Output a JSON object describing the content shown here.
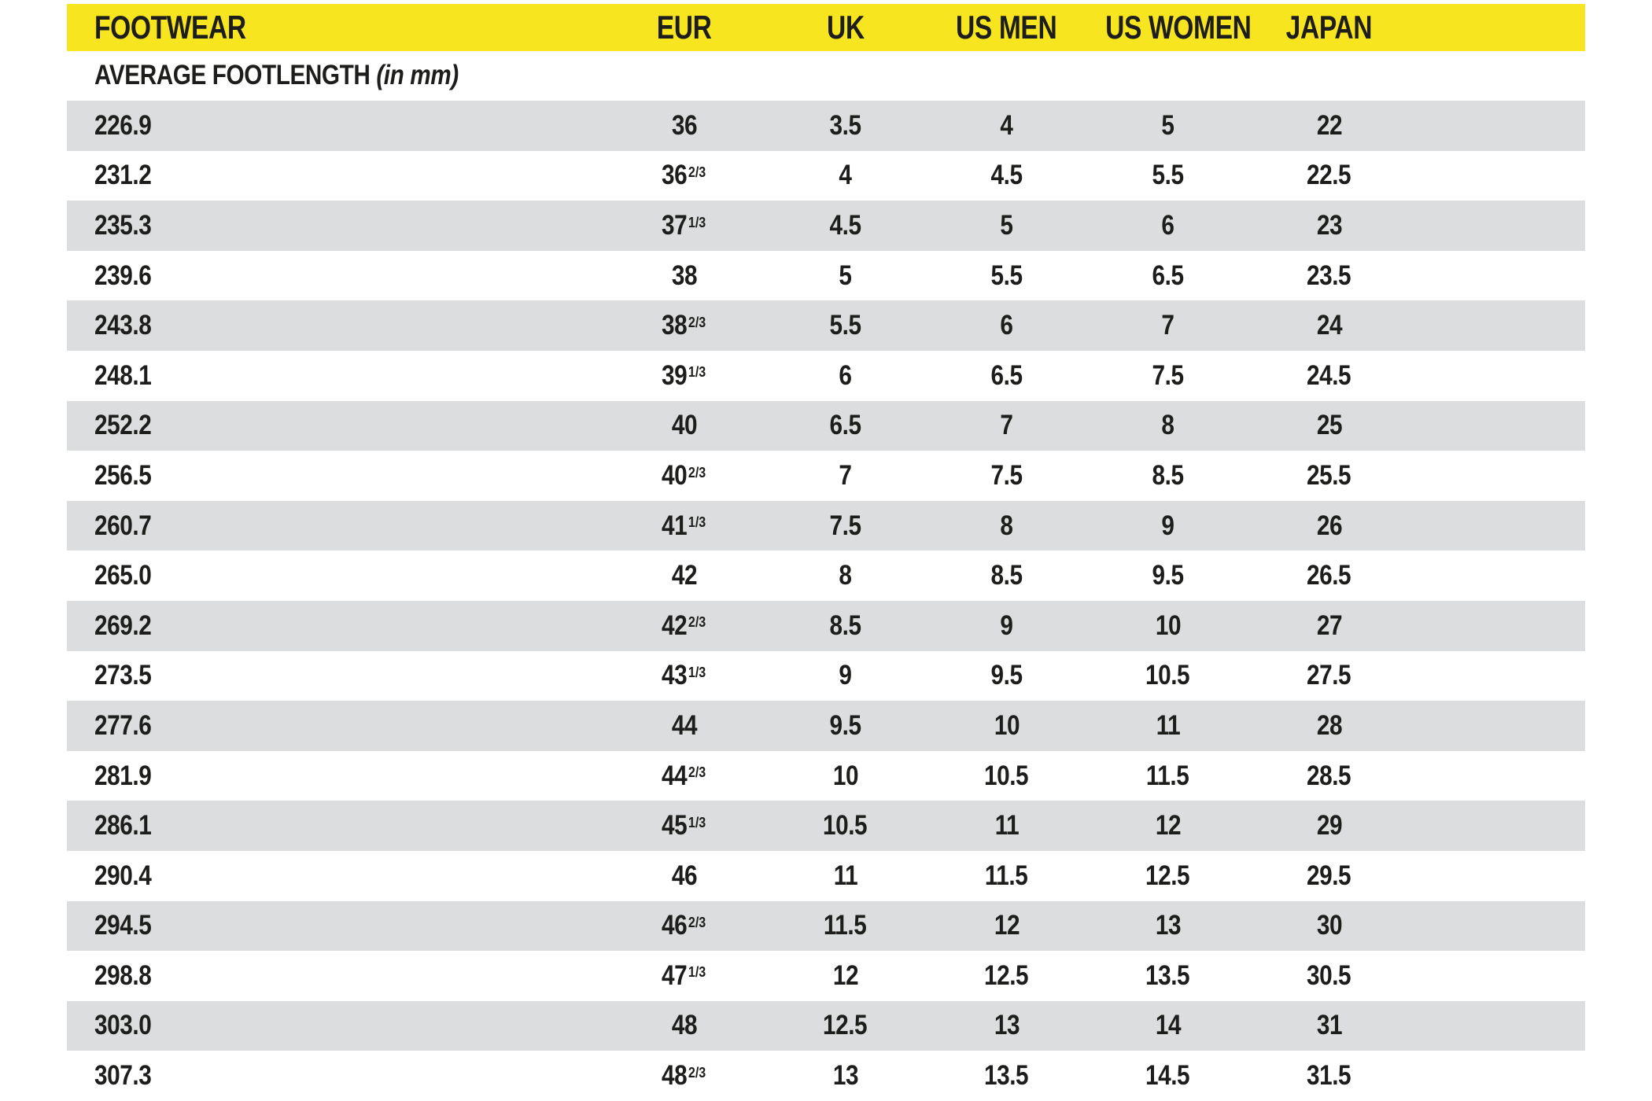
{
  "colors": {
    "header_bg": "#f7e51f",
    "alt_row_bg": "#dcddde",
    "text": "#1d1d1b"
  },
  "table": {
    "headers": [
      "FOOTWEAR",
      "EUR",
      "UK",
      "US MEN",
      "US WOMEN",
      "JAPAN"
    ],
    "subheader": {
      "text": "AVERAGE FOOTLENGTH",
      "note": "(in mm)"
    },
    "rows": [
      {
        "footlength": "226.9",
        "eur": "36",
        "uk": "3.5",
        "us_men": "4",
        "us_women": "5",
        "japan": "22"
      },
      {
        "footlength": "231.2",
        "eur": "36 2/3",
        "uk": "4",
        "us_men": "4.5",
        "us_women": "5.5",
        "japan": "22.5"
      },
      {
        "footlength": "235.3",
        "eur": "37 1/3",
        "uk": "4.5",
        "us_men": "5",
        "us_women": "6",
        "japan": "23"
      },
      {
        "footlength": "239.6",
        "eur": "38",
        "uk": "5",
        "us_men": "5.5",
        "us_women": "6.5",
        "japan": "23.5"
      },
      {
        "footlength": "243.8",
        "eur": "38 2/3",
        "uk": "5.5",
        "us_men": "6",
        "us_women": "7",
        "japan": "24"
      },
      {
        "footlength": "248.1",
        "eur": "39 1/3",
        "uk": "6",
        "us_men": "6.5",
        "us_women": "7.5",
        "japan": "24.5"
      },
      {
        "footlength": "252.2",
        "eur": "40",
        "uk": "6.5",
        "us_men": "7",
        "us_women": "8",
        "japan": "25"
      },
      {
        "footlength": "256.5",
        "eur": "40 2/3",
        "uk": "7",
        "us_men": "7.5",
        "us_women": "8.5",
        "japan": "25.5"
      },
      {
        "footlength": "260.7",
        "eur": "41 1/3",
        "uk": "7.5",
        "us_men": "8",
        "us_women": "9",
        "japan": "26"
      },
      {
        "footlength": "265.0",
        "eur": "42",
        "uk": "8",
        "us_men": "8.5",
        "us_women": "9.5",
        "japan": "26.5"
      },
      {
        "footlength": "269.2",
        "eur": "42 2/3",
        "uk": "8.5",
        "us_men": "9",
        "us_women": "10",
        "japan": "27"
      },
      {
        "footlength": "273.5",
        "eur": "43 1/3",
        "uk": "9",
        "us_men": "9.5",
        "us_women": "10.5",
        "japan": "27.5"
      },
      {
        "footlength": "277.6",
        "eur": "44",
        "uk": "9.5",
        "us_men": "10",
        "us_women": "11",
        "japan": "28"
      },
      {
        "footlength": "281.9",
        "eur": "44 2/3",
        "uk": "10",
        "us_men": "10.5",
        "us_women": "11.5",
        "japan": "28.5"
      },
      {
        "footlength": "286.1",
        "eur": "45 1/3",
        "uk": "10.5",
        "us_men": "11",
        "us_women": "12",
        "japan": "29"
      },
      {
        "footlength": "290.4",
        "eur": "46",
        "uk": "11",
        "us_men": "11.5",
        "us_women": "12.5",
        "japan": "29.5"
      },
      {
        "footlength": "294.5",
        "eur": "46 2/3",
        "uk": "11.5",
        "us_men": "12",
        "us_women": "13",
        "japan": "30"
      },
      {
        "footlength": "298.8",
        "eur": "47 1/3",
        "uk": "12",
        "us_men": "12.5",
        "us_women": "13.5",
        "japan": "30.5"
      },
      {
        "footlength": "303.0",
        "eur": "48",
        "uk": "12.5",
        "us_men": "13",
        "us_women": "14",
        "japan": "31"
      },
      {
        "footlength": "307.3",
        "eur": "48 2/3",
        "uk": "13",
        "us_men": "13.5",
        "us_women": "14.5",
        "japan": "31.5"
      }
    ]
  }
}
